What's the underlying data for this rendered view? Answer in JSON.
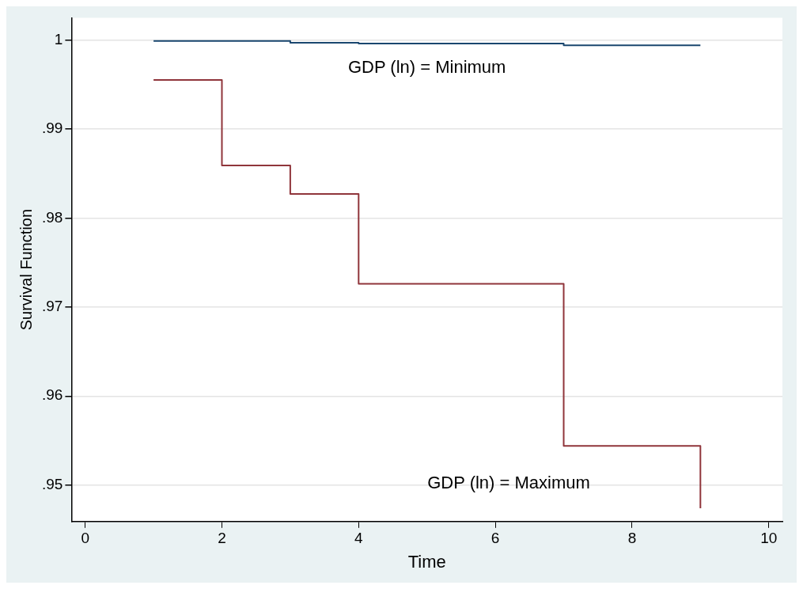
{
  "chart_data": {
    "type": "step",
    "xlabel": "Time",
    "ylabel": "Survival Function",
    "x": [
      1,
      2,
      3,
      4,
      7,
      9
    ],
    "series": [
      {
        "color": "#1a476f",
        "values": [
          0.9999,
          0.9999,
          0.9997,
          0.9996,
          0.9994,
          0.9994
        ]
      },
      {
        "color": "#90353b",
        "values": [
          0.9955,
          0.9859,
          0.9827,
          0.9726,
          0.9544,
          0.9474
        ]
      }
    ],
    "xlim": [
      -0.2,
      10.2
    ],
    "xticks": [
      0,
      2,
      4,
      6,
      8,
      10
    ],
    "ylim": [
      0.9459,
      1.0025
    ],
    "yticks": [
      {
        "value": 0.95,
        "label": ".95"
      },
      {
        "value": 0.96,
        "label": ".96"
      },
      {
        "value": 0.97,
        "label": ".97"
      },
      {
        "value": 0.98,
        "label": ".98"
      },
      {
        "value": 0.99,
        "label": ".99"
      },
      {
        "value": 1,
        "label": "1"
      }
    ],
    "grid": "y",
    "legend": false,
    "line_style": "solid",
    "marker": "none",
    "annotations": [
      "GDP (ln) = Minimum",
      "GDP (ln) = Maximum"
    ]
  }
}
